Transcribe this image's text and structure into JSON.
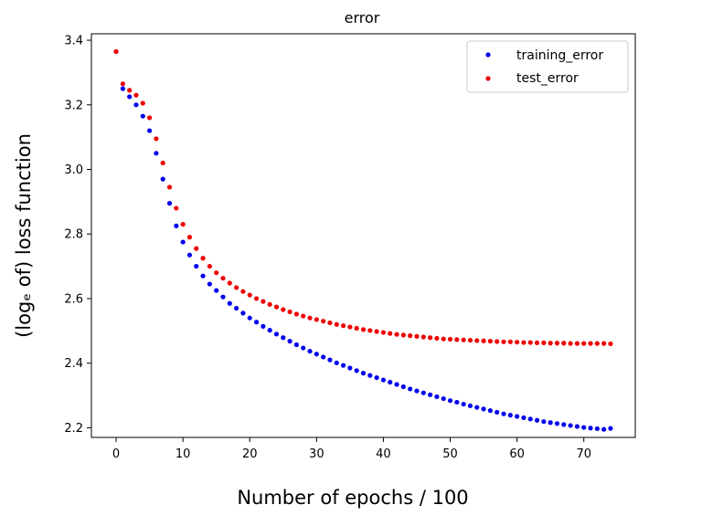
{
  "chart_data": {
    "type": "scatter",
    "title": "error",
    "xlabel": "Number of epochs / 100",
    "ylabel": "(logₑ of) loss function",
    "xlim": [
      -3.7,
      77.7
    ],
    "ylim": [
      2.17,
      3.42
    ],
    "xticks": [
      0,
      10,
      20,
      30,
      40,
      50,
      60,
      70
    ],
    "yticks": [
      2.2,
      2.4,
      2.6,
      2.8,
      3.0,
      3.2,
      3.4
    ],
    "ytick_labels": [
      "2.2",
      "2.4",
      "2.6",
      "2.8",
      "3.0",
      "3.2",
      "3.4"
    ],
    "legend_position": "top-right",
    "series": [
      {
        "name": "training_error",
        "color": "#0000ee",
        "x": [
          0,
          1,
          2,
          3,
          4,
          5,
          6,
          7,
          8,
          9,
          10,
          11,
          12,
          13,
          14,
          15,
          16,
          17,
          18,
          19,
          20,
          21,
          22,
          23,
          24,
          25,
          26,
          27,
          28,
          29,
          30,
          31,
          32,
          33,
          34,
          35,
          36,
          37,
          38,
          39,
          40,
          41,
          42,
          43,
          44,
          45,
          46,
          47,
          48,
          49,
          50,
          51,
          52,
          53,
          54,
          55,
          56,
          57,
          58,
          59,
          60,
          61,
          62,
          63,
          64,
          65,
          66,
          67,
          68,
          69,
          70,
          71,
          72,
          73,
          74
        ],
        "y": [
          3.365,
          3.25,
          3.225,
          3.2,
          3.165,
          3.12,
          3.05,
          2.97,
          2.895,
          2.825,
          2.775,
          2.735,
          2.7,
          2.67,
          2.645,
          2.625,
          2.605,
          2.585,
          2.57,
          2.555,
          2.54,
          2.527,
          2.514,
          2.502,
          2.49,
          2.479,
          2.468,
          2.457,
          2.447,
          2.437,
          2.428,
          2.419,
          2.41,
          2.401,
          2.393,
          2.385,
          2.377,
          2.369,
          2.362,
          2.355,
          2.348,
          2.341,
          2.334,
          2.327,
          2.32,
          2.314,
          2.308,
          2.302,
          2.296,
          2.29,
          2.284,
          2.279,
          2.273,
          2.268,
          2.263,
          2.258,
          2.253,
          2.248,
          2.243,
          2.239,
          2.235,
          2.231,
          2.227,
          2.223,
          2.219,
          2.216,
          2.213,
          2.21,
          2.207,
          2.204,
          2.201,
          2.199,
          2.197,
          2.195,
          2.198
        ]
      },
      {
        "name": "test_error",
        "color": "#ee0000",
        "x": [
          0,
          1,
          2,
          3,
          4,
          5,
          6,
          7,
          8,
          9,
          10,
          11,
          12,
          13,
          14,
          15,
          16,
          17,
          18,
          19,
          20,
          21,
          22,
          23,
          24,
          25,
          26,
          27,
          28,
          29,
          30,
          31,
          32,
          33,
          34,
          35,
          36,
          37,
          38,
          39,
          40,
          41,
          42,
          43,
          44,
          45,
          46,
          47,
          48,
          49,
          50,
          51,
          52,
          53,
          54,
          55,
          56,
          57,
          58,
          59,
          60,
          61,
          62,
          63,
          64,
          65,
          66,
          67,
          68,
          69,
          70,
          71,
          72,
          73,
          74
        ],
        "y": [
          3.365,
          3.265,
          3.245,
          3.23,
          3.205,
          3.16,
          3.095,
          3.02,
          2.945,
          2.88,
          2.83,
          2.79,
          2.755,
          2.725,
          2.7,
          2.68,
          2.663,
          2.648,
          2.634,
          2.622,
          2.611,
          2.6,
          2.591,
          2.582,
          2.574,
          2.566,
          2.559,
          2.552,
          2.546,
          2.54,
          2.535,
          2.53,
          2.525,
          2.52,
          2.516,
          2.512,
          2.508,
          2.504,
          2.501,
          2.498,
          2.495,
          2.492,
          2.489,
          2.487,
          2.485,
          2.483,
          2.481,
          2.479,
          2.477,
          2.475,
          2.474,
          2.473,
          2.472,
          2.471,
          2.47,
          2.469,
          2.468,
          2.467,
          2.466,
          2.466,
          2.465,
          2.464,
          2.464,
          2.463,
          2.463,
          2.462,
          2.462,
          2.462,
          2.461,
          2.461,
          2.461,
          2.461,
          2.461,
          2.461,
          2.46
        ]
      }
    ]
  }
}
